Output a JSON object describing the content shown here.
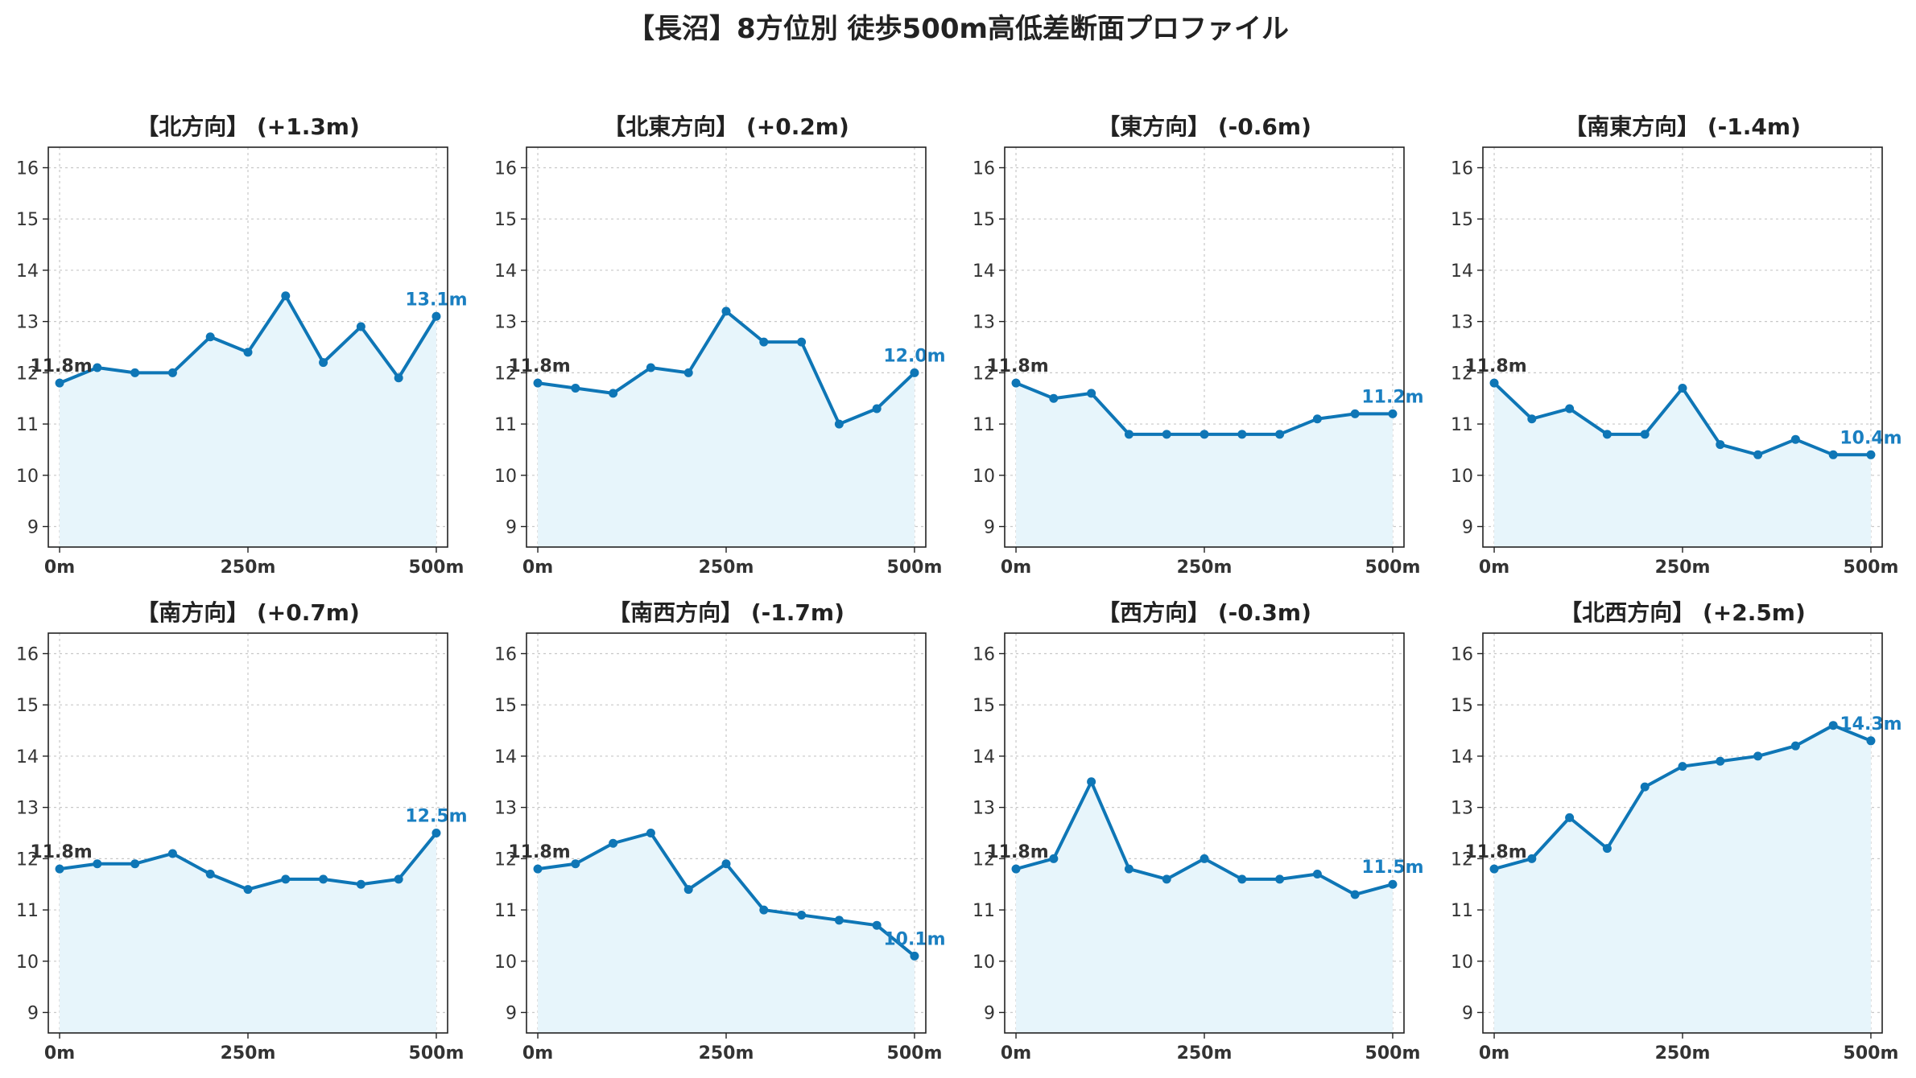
{
  "title": "【長沼】8方位別 徒歩500m高低差断面プロファイル",
  "colors": {
    "line": "#0e76b6",
    "fill": "#e7f5fb",
    "end_label": "#1a7fc1",
    "start_label": "#333333",
    "grid": "#c8c8c8"
  },
  "chart_data": [
    {
      "type": "line",
      "title": "【北方向】 (+1.3m)",
      "x": [
        0,
        50,
        100,
        150,
        200,
        250,
        300,
        350,
        400,
        450,
        500
      ],
      "series": [
        {
          "values": [
            11.8,
            12.1,
            12.0,
            12.0,
            12.7,
            12.4,
            13.5,
            12.2,
            12.9,
            11.9,
            13.1
          ]
        }
      ],
      "start_label": "11.8m",
      "end_label": "13.1m",
      "xticks": [
        "0m",
        "250m",
        "500m"
      ],
      "yticks": [
        "9",
        "10",
        "11",
        "12",
        "13",
        "14",
        "15",
        "16"
      ],
      "xlim": [
        0,
        500
      ],
      "ylim": [
        8.6,
        16.4
      ],
      "grid": true
    },
    {
      "type": "line",
      "title": "【北東方向】 (+0.2m)",
      "x": [
        0,
        50,
        100,
        150,
        200,
        250,
        300,
        350,
        400,
        450,
        500
      ],
      "series": [
        {
          "values": [
            11.8,
            11.7,
            11.6,
            12.1,
            12.0,
            13.2,
            12.6,
            12.6,
            11.0,
            11.3,
            12.0
          ]
        }
      ],
      "start_label": "11.8m",
      "end_label": "12.0m",
      "xticks": [
        "0m",
        "250m",
        "500m"
      ],
      "yticks": [
        "9",
        "10",
        "11",
        "12",
        "13",
        "14",
        "15",
        "16"
      ],
      "xlim": [
        0,
        500
      ],
      "ylim": [
        8.6,
        16.4
      ],
      "grid": true
    },
    {
      "type": "line",
      "title": "【東方向】 (-0.6m)",
      "x": [
        0,
        50,
        100,
        150,
        200,
        250,
        300,
        350,
        400,
        450,
        500
      ],
      "series": [
        {
          "values": [
            11.8,
            11.5,
            11.6,
            10.8,
            10.8,
            10.8,
            10.8,
            10.8,
            11.1,
            11.2,
            11.2
          ]
        }
      ],
      "start_label": "11.8m",
      "end_label": "11.2m",
      "xticks": [
        "0m",
        "250m",
        "500m"
      ],
      "yticks": [
        "9",
        "10",
        "11",
        "12",
        "13",
        "14",
        "15",
        "16"
      ],
      "xlim": [
        0,
        500
      ],
      "ylim": [
        8.6,
        16.4
      ],
      "grid": true
    },
    {
      "type": "line",
      "title": "【南東方向】 (-1.4m)",
      "x": [
        0,
        50,
        100,
        150,
        200,
        250,
        300,
        350,
        400,
        450,
        500
      ],
      "series": [
        {
          "values": [
            11.8,
            11.1,
            11.3,
            10.8,
            10.8,
            11.7,
            10.6,
            10.4,
            10.7,
            10.4,
            10.4
          ]
        }
      ],
      "start_label": "11.8m",
      "end_label": "10.4m",
      "xticks": [
        "0m",
        "250m",
        "500m"
      ],
      "yticks": [
        "9",
        "10",
        "11",
        "12",
        "13",
        "14",
        "15",
        "16"
      ],
      "xlim": [
        0,
        500
      ],
      "ylim": [
        8.6,
        16.4
      ],
      "grid": true
    },
    {
      "type": "line",
      "title": "【南方向】 (+0.7m)",
      "x": [
        0,
        50,
        100,
        150,
        200,
        250,
        300,
        350,
        400,
        450,
        500
      ],
      "series": [
        {
          "values": [
            11.8,
            11.9,
            11.9,
            12.1,
            11.7,
            11.4,
            11.6,
            11.6,
            11.5,
            11.6,
            12.5
          ]
        }
      ],
      "start_label": "11.8m",
      "end_label": "12.5m",
      "xticks": [
        "0m",
        "250m",
        "500m"
      ],
      "yticks": [
        "9",
        "10",
        "11",
        "12",
        "13",
        "14",
        "15",
        "16"
      ],
      "xlim": [
        0,
        500
      ],
      "ylim": [
        8.6,
        16.4
      ],
      "grid": true
    },
    {
      "type": "line",
      "title": "【南西方向】 (-1.7m)",
      "x": [
        0,
        50,
        100,
        150,
        200,
        250,
        300,
        350,
        400,
        450,
        500
      ],
      "series": [
        {
          "values": [
            11.8,
            11.9,
            12.3,
            12.5,
            11.4,
            11.9,
            11.0,
            10.9,
            10.8,
            10.7,
            10.1
          ]
        }
      ],
      "start_label": "11.8m",
      "end_label": "10.1m",
      "xticks": [
        "0m",
        "250m",
        "500m"
      ],
      "yticks": [
        "9",
        "10",
        "11",
        "12",
        "13",
        "14",
        "15",
        "16"
      ],
      "xlim": [
        0,
        500
      ],
      "ylim": [
        8.6,
        16.4
      ],
      "grid": true
    },
    {
      "type": "line",
      "title": "【西方向】 (-0.3m)",
      "x": [
        0,
        50,
        100,
        150,
        200,
        250,
        300,
        350,
        400,
        450,
        500
      ],
      "series": [
        {
          "values": [
            11.8,
            12.0,
            13.5,
            11.8,
            11.6,
            12.0,
            11.6,
            11.6,
            11.7,
            11.3,
            11.5
          ]
        }
      ],
      "start_label": "11.8m",
      "end_label": "11.5m",
      "xticks": [
        "0m",
        "250m",
        "500m"
      ],
      "yticks": [
        "9",
        "10",
        "11",
        "12",
        "13",
        "14",
        "15",
        "16"
      ],
      "xlim": [
        0,
        500
      ],
      "ylim": [
        8.6,
        16.4
      ],
      "grid": true
    },
    {
      "type": "line",
      "title": "【北西方向】 (+2.5m)",
      "x": [
        0,
        50,
        100,
        150,
        200,
        250,
        300,
        350,
        400,
        450,
        500
      ],
      "series": [
        {
          "values": [
            11.8,
            12.0,
            12.8,
            12.2,
            13.4,
            13.8,
            13.9,
            14.0,
            14.2,
            14.6,
            14.3
          ]
        }
      ],
      "start_label": "11.8m",
      "end_label": "14.3m",
      "xticks": [
        "0m",
        "250m",
        "500m"
      ],
      "yticks": [
        "9",
        "10",
        "11",
        "12",
        "13",
        "14",
        "15",
        "16"
      ],
      "xlim": [
        0,
        500
      ],
      "ylim": [
        8.6,
        16.4
      ],
      "grid": true
    }
  ]
}
